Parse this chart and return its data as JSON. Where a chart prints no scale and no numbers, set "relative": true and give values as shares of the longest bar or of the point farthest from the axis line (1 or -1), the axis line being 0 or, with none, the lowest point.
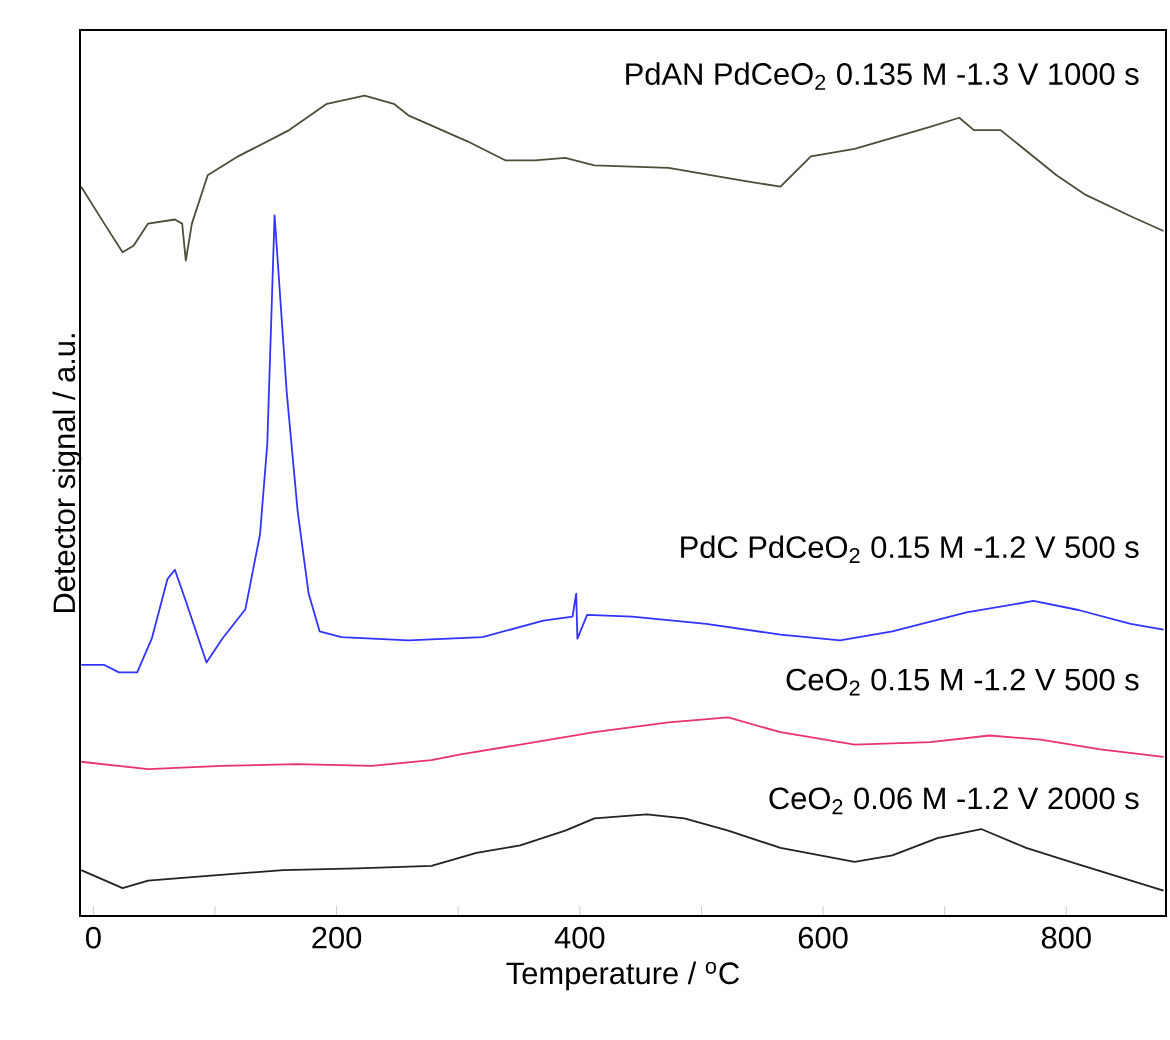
{
  "chart_data": {
    "type": "line",
    "xlabel": "Temperature / $^{o}$C",
    "ylabel": "Detector signal / a.u.",
    "relative": true,
    "xlim": [
      -11,
      882
    ],
    "xticks": [
      0,
      {
        "value": 100,
        "label": null
      },
      200,
      {
        "value": 300,
        "label": null
      },
      400,
      {
        "value": 500,
        "label": null
      },
      600,
      {
        "value": 700,
        "label": null
      },
      800
    ],
    "series": [
      {
        "name": "PdAN PdCeO$_{2}$ 0.135 M -1.3 V 1000 s",
        "color": "#4d4d3a",
        "x": [
          -10,
          9,
          24,
          33,
          45,
          67,
          73,
          76,
          81,
          94,
          119,
          161,
          192,
          223,
          247,
          259,
          308,
          339,
          363,
          388,
          412,
          473,
          535,
          565,
          590,
          626,
          688,
          712,
          724,
          746,
          792,
          816,
          853,
          880
        ],
        "values": [
          0.889,
          0.844,
          0.809,
          0.817,
          0.844,
          0.849,
          0.844,
          0.799,
          0.844,
          0.903,
          0.926,
          0.958,
          0.99,
          1.0,
          0.99,
          0.976,
          0.944,
          0.921,
          0.921,
          0.924,
          0.915,
          0.912,
          0.896,
          0.889,
          0.926,
          0.935,
          0.962,
          0.973,
          0.958,
          0.958,
          0.903,
          0.879,
          0.853,
          0.835
        ]
      },
      {
        "name": "PdC PdCeO$_{2}$ 0.15 M -1.2 V 500 s",
        "color": "#3333ff",
        "x": [
          -10,
          9,
          21,
          36,
          48,
          61,
          67,
          76,
          93,
          106,
          125,
          137,
          143,
          149,
          159,
          168,
          177,
          186,
          204,
          259,
          320,
          370,
          394,
          397,
          398,
          406,
          443,
          504,
          565,
          614,
          657,
          718,
          773,
          810,
          853,
          880
        ],
        "values": [
          0.306,
          0.306,
          0.297,
          0.297,
          0.338,
          0.411,
          0.422,
          0.384,
          0.309,
          0.338,
          0.374,
          0.465,
          0.575,
          0.854,
          0.638,
          0.493,
          0.393,
          0.347,
          0.34,
          0.336,
          0.34,
          0.36,
          0.365,
          0.393,
          0.338,
          0.367,
          0.365,
          0.356,
          0.343,
          0.336,
          0.347,
          0.37,
          0.384,
          0.373,
          0.356,
          0.349
        ]
      },
      {
        "name": "CeO$_{2}$ 0.15 M -1.2 V 500 s",
        "color": "#e8336b",
        "x": [
          -10,
          45,
          106,
          168,
          229,
          278,
          302,
          351,
          412,
          473,
          522,
          565,
          626,
          688,
          737,
          779,
          828,
          880
        ],
        "values": [
          0.188,
          0.179,
          0.183,
          0.185,
          0.183,
          0.19,
          0.197,
          0.209,
          0.224,
          0.236,
          0.242,
          0.224,
          0.209,
          0.212,
          0.22,
          0.215,
          0.203,
          0.194
        ]
      },
      {
        "name": "CeO$_{2}$ 0.06 M -1.2 V 2000 s",
        "color": "#222222",
        "x": [
          -10,
          24,
          45,
          94,
          156,
          217,
          278,
          315,
          351,
          388,
          412,
          455,
          486,
          522,
          565,
          626,
          657,
          694,
          730,
          767,
          810,
          880
        ],
        "values": [
          0.056,
          0.034,
          0.043,
          0.049,
          0.056,
          0.058,
          0.061,
          0.077,
          0.086,
          0.104,
          0.119,
          0.124,
          0.119,
          0.104,
          0.083,
          0.066,
          0.074,
          0.095,
          0.106,
          0.083,
          0.063,
          0.031
        ]
      }
    ]
  }
}
